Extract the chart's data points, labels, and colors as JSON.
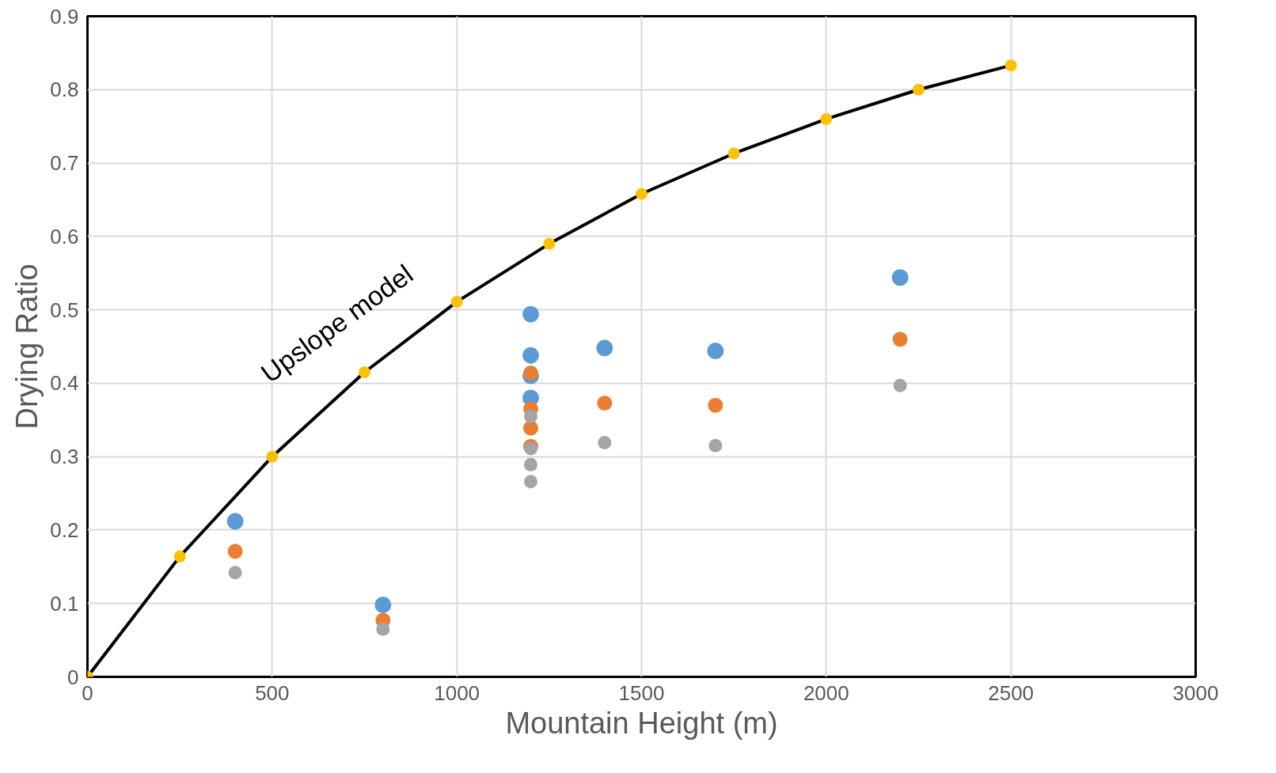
{
  "chart_data": {
    "type": "scatter",
    "xlabel": "Mountain Height (m)",
    "ylabel": "Drying Ratio",
    "xlim": [
      0,
      3000
    ],
    "ylim": [
      0,
      0.9
    ],
    "xticks": [
      0,
      500,
      1000,
      1500,
      2000,
      2500,
      3000
    ],
    "yticks": [
      0,
      0.1,
      0.2,
      0.3,
      0.4,
      0.5,
      0.6,
      0.7,
      0.8,
      0.9
    ],
    "grid": true,
    "marker": "circle",
    "series": [
      {
        "color": "#5b9bd5",
        "x": [
          400,
          800,
          1200,
          1200,
          1200,
          1200,
          1400,
          1700,
          2200
        ],
        "values": [
          0.212,
          0.098,
          0.494,
          0.438,
          0.41,
          0.38,
          0.448,
          0.444,
          0.544
        ]
      },
      {
        "color": "#ed7d31",
        "x": [
          400,
          800,
          1200,
          1200,
          1200,
          1200,
          1400,
          1700,
          2200
        ],
        "values": [
          0.171,
          0.077,
          0.414,
          0.365,
          0.339,
          0.314,
          0.373,
          0.37,
          0.46
        ]
      },
      {
        "color": "#a5a5a5",
        "x": [
          400,
          800,
          1200,
          1200,
          1200,
          1200,
          1400,
          1700,
          2200
        ],
        "values": [
          0.142,
          0.065,
          0.355,
          0.311,
          0.289,
          0.266,
          0.319,
          0.315,
          0.397
        ]
      },
      {
        "type": "line",
        "color": "#ffc000",
        "line_style": "solid",
        "x": [
          0,
          250,
          500,
          750,
          1000,
          1250,
          1500,
          1750,
          2000,
          2250,
          2500
        ],
        "values": [
          0,
          0.164,
          0.3,
          0.415,
          0.511,
          0.59,
          0.658,
          0.713,
          0.76,
          0.8,
          0.833
        ]
      }
    ],
    "annotations": [
      "Upslope model"
    ]
  }
}
